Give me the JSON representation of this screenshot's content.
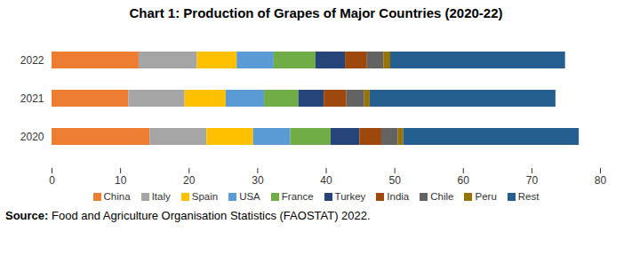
{
  "chart_data": {
    "type": "bar",
    "orientation": "horizontal",
    "stacked": true,
    "title": "Chart 1: Production of Grapes of Major Countries (2020-22)",
    "caption": "Source: Food and Agriculture Organisation Statistics (FAOSTAT) 2022.",
    "categories": [
      "2022",
      "2021",
      "2020"
    ],
    "series": [
      {
        "name": "China",
        "color": "#ed7d31",
        "values": [
          12.7,
          11.2,
          14.3
        ]
      },
      {
        "name": "Italy",
        "color": "#a5a5a5",
        "values": [
          8.5,
          8.2,
          8.3
        ]
      },
      {
        "name": "Spain",
        "color": "#ffc000",
        "values": [
          5.8,
          6.0,
          6.8
        ]
      },
      {
        "name": "USA",
        "color": "#5b9bd5",
        "values": [
          5.4,
          5.6,
          5.4
        ]
      },
      {
        "name": "France",
        "color": "#70ad47",
        "values": [
          6.1,
          5.0,
          5.9
        ]
      },
      {
        "name": "Turkey",
        "color": "#264478",
        "values": [
          4.3,
          3.7,
          4.2
        ]
      },
      {
        "name": "India",
        "color": "#9e480e",
        "values": [
          3.2,
          3.3,
          3.2
        ]
      },
      {
        "name": "Chile",
        "color": "#636363",
        "values": [
          2.4,
          2.6,
          2.4
        ]
      },
      {
        "name": "Peru",
        "color": "#997300",
        "values": [
          1.0,
          0.8,
          0.8
        ]
      },
      {
        "name": "Rest",
        "color": "#255e91",
        "values": [
          25.5,
          27.1,
          25.6
        ]
      }
    ],
    "xlim": [
      0,
      80
    ],
    "xticks": [
      0,
      10,
      20,
      30,
      40,
      50,
      60,
      70,
      80
    ],
    "grid": false,
    "legend": "bottom"
  }
}
